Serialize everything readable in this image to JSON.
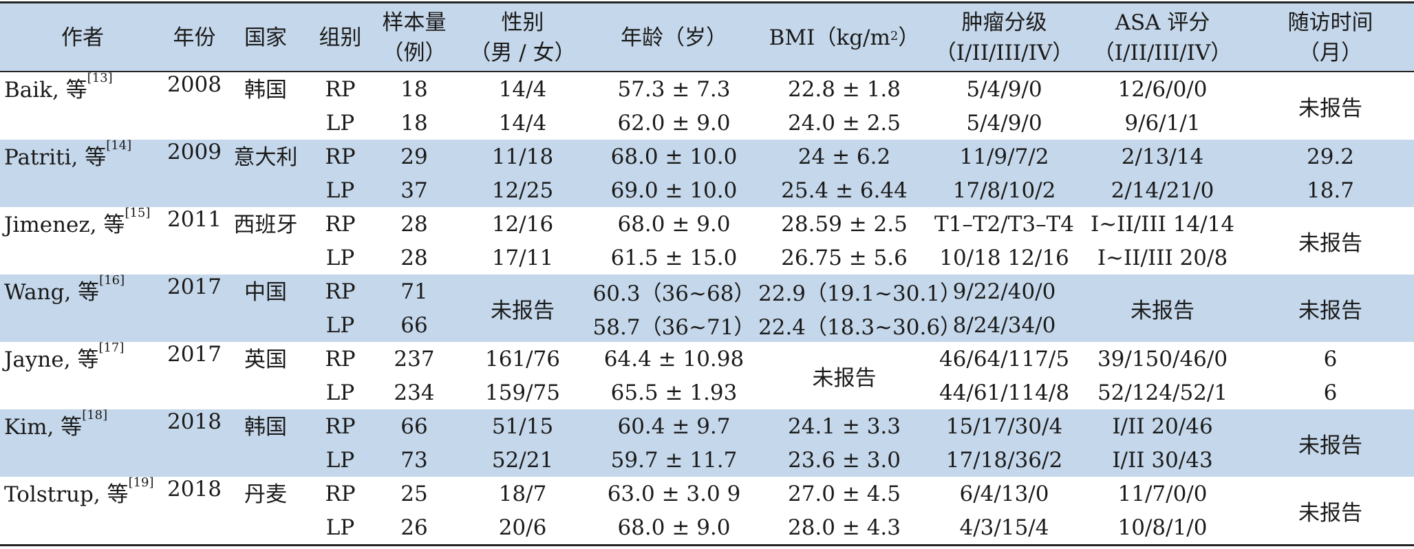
{
  "header": {
    "author": "作者",
    "year": "年份",
    "country": "国家",
    "group": "组别",
    "sample_1": "样本量",
    "sample_2": "（例）",
    "sex_1": "性别",
    "sex_2": "（男 / 女）",
    "age": "年龄（岁）",
    "bmi": "BMI（kg/m",
    "bmi_sup": "2",
    "bmi_end": "）",
    "grade_1": "肿瘤分级",
    "grade_2": "（I/II/III/IV）",
    "asa_1": "ASA 评分",
    "asa_2": "（I/II/III/IV）",
    "follow_1": "随访时间",
    "follow_2": "（月）"
  },
  "studies": [
    {
      "author": "Baik, 等",
      "ref": "[13]",
      "year": "2008",
      "country": "韩国",
      "follow": "未报告",
      "rp": {
        "group": "RP",
        "n": "18",
        "sex": "14/4",
        "age": "57.3 ± 7.3",
        "bmi": "22.8 ± 1.8",
        "grade": "5/4/9/0",
        "asa": "12/6/0/0"
      },
      "lp": {
        "group": "LP",
        "n": "18",
        "sex": "14/4",
        "age": "62.0 ± 9.0",
        "bmi": "24.0 ± 2.5",
        "grade": "5/4/9/0",
        "asa": "9/6/1/1"
      }
    },
    {
      "author": "Patriti, 等",
      "ref": "[14]",
      "year": "2009",
      "country": "意大利",
      "rp": {
        "group": "RP",
        "n": "29",
        "sex": "11/18",
        "age": "68.0 ± 10.0",
        "bmi": "24 ± 6.2",
        "grade": "11/9/7/2",
        "asa": "2/13/14",
        "follow": "29.2"
      },
      "lp": {
        "group": "LP",
        "n": "37",
        "sex": "12/25",
        "age": "69.0 ± 10.0",
        "bmi": "25.4 ± 6.44",
        "grade": "17/8/10/2",
        "asa": "2/14/21/0",
        "follow": "18.7"
      }
    },
    {
      "author": "Jimenez, 等",
      "ref": "[15]",
      "year": "2011",
      "country": "西班牙",
      "follow": "未报告",
      "rp": {
        "group": "RP",
        "n": "28",
        "sex": "12/16",
        "age": "68.0 ± 9.0",
        "bmi": "28.59 ± 2.5",
        "grade": "T1–T2/T3–T4",
        "asa": "I~II/III 14/14"
      },
      "lp": {
        "group": "LP",
        "n": "28",
        "sex": "17/11",
        "age": "61.5 ± 15.0",
        "bmi": "26.75 ± 5.6",
        "grade": "10/18 12/16",
        "asa": "I~II/III 20/8"
      }
    },
    {
      "author": "Wang, 等",
      "ref": "[16]",
      "year": "2017",
      "country": "中国",
      "sex": "未报告",
      "asa": "未报告",
      "follow": "未报告",
      "rp": {
        "group": "RP",
        "n": "71",
        "age": "60.3（36~68）",
        "bmi": "22.9（19.1~30.1）",
        "grade": "9/22/40/0"
      },
      "lp": {
        "group": "LP",
        "n": "66",
        "age": "58.7（36~71）",
        "bmi": "22.4（18.3~30.6）",
        "grade": "8/24/34/0"
      }
    },
    {
      "author": "Jayne, 等",
      "ref": "[17]",
      "year": "2017",
      "country": "英国",
      "bmi": "未报告",
      "rp": {
        "group": "RP",
        "n": "237",
        "sex": "161/76",
        "age": "64.4 ± 10.98",
        "grade": "46/64/117/5",
        "asa": "39/150/46/0",
        "follow": "6"
      },
      "lp": {
        "group": "LP",
        "n": "234",
        "sex": "159/75",
        "age": "65.5 ± 1.93",
        "grade": "44/61/114/8",
        "asa": "52/124/52/1",
        "follow": "6"
      }
    },
    {
      "author": "Kim, 等",
      "ref": "[18]",
      "year": "2018",
      "country": "韩国",
      "follow": "未报告",
      "rp": {
        "group": "RP",
        "n": "66",
        "sex": "51/15",
        "age": "60.4 ± 9.7",
        "bmi": "24.1 ± 3.3",
        "grade": "15/17/30/4",
        "asa": "I/II 20/46"
      },
      "lp": {
        "group": "LP",
        "n": "73",
        "sex": "52/21",
        "age": "59.7 ± 11.7",
        "bmi": "23.6 ± 3.0",
        "grade": "17/18/36/2",
        "asa": "I/II 30/43"
      }
    },
    {
      "author": "Tolstrup, 等",
      "ref": "[19]",
      "year": "2018",
      "country": "丹麦",
      "follow": "未报告",
      "rp": {
        "group": "RP",
        "n": "25",
        "sex": "18/7",
        "age": "63.0 ± 3.0 9",
        "bmi": "27.0 ± 4.5",
        "grade": "6/4/13/0",
        "asa": "11/7/0/0"
      },
      "lp": {
        "group": "LP",
        "n": "26",
        "sex": "20/6",
        "age": "68.0 ± 9.0",
        "bmi": "28.0 ± 4.3",
        "grade": "4/3/15/4",
        "asa": "10/8/1/0"
      }
    }
  ]
}
